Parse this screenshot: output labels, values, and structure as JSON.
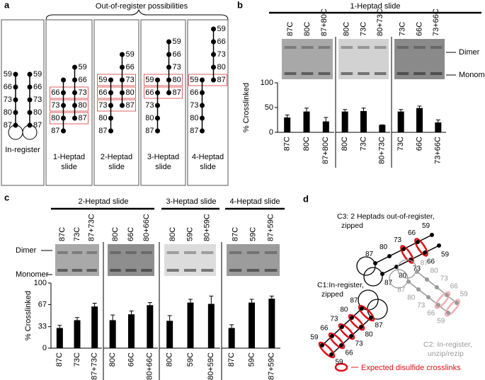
{
  "panel_labels": [
    "a",
    "b",
    "c",
    "d"
  ],
  "a": {
    "title": "Out-of-register possibilities",
    "boxes": [
      {
        "caption": [
          "In-register"
        ],
        "left": [
          "59",
          "66",
          "73",
          "80",
          "87"
        ],
        "right": [
          "59",
          "66",
          "73",
          "80",
          "87"
        ]
      },
      {
        "caption": [
          "1-Heptad",
          "slide"
        ],
        "left": [
          null,
          "66",
          "73",
          "80",
          "87"
        ],
        "right": [
          "59",
          "66",
          "73",
          "80",
          "87"
        ]
      },
      {
        "caption": [
          "2-Heptad",
          "slide"
        ],
        "left": [
          "59",
          "66",
          "73",
          "80",
          "87"
        ],
        "right": [
          "59",
          "66",
          "73",
          "80",
          "87"
        ]
      },
      {
        "caption": [
          "3-Heptad",
          "slide"
        ],
        "left": [
          "59",
          "66",
          "73",
          "80",
          "87"
        ],
        "right": [
          "59",
          "66",
          "73",
          "80",
          "87"
        ]
      },
      {
        "caption": [
          "4-Heptad",
          "slide"
        ],
        "left": [
          "59",
          "66",
          "73",
          "80",
          "87"
        ],
        "right": [
          "59",
          "66",
          "73",
          "80",
          "87"
        ]
      }
    ]
  },
  "b": {
    "title": "1-Heptad slide",
    "y_label": "% Crosslinked",
    "gel_labels": [
      "Dimer",
      "Monomer"
    ]
  },
  "c": {
    "titles": [
      "2-Heptad slide",
      "3-Heptad slide",
      "4-Heptad slide"
    ],
    "y_label": "% Crosslinked",
    "gel_labels": [
      "Dimer",
      "Monomer"
    ]
  },
  "chart_data": [
    {
      "type": "bar",
      "categories": [
        "87C",
        "80C",
        "87+80C"
      ],
      "values": [
        30,
        42,
        22
      ],
      "errors": [
        5,
        7,
        8
      ],
      "color": "#000000",
      "ylim": [
        0,
        100
      ],
      "yticks": [
        0,
        50,
        100
      ]
    },
    {
      "type": "bar",
      "categories": [
        "80C",
        "73C",
        "80+73C"
      ],
      "values": [
        42,
        43,
        15
      ],
      "errors": [
        4,
        6,
        0
      ],
      "color": "#000000",
      "ylim": [
        0,
        100
      ]
    },
    {
      "type": "bar",
      "categories": [
        "73C",
        "66C",
        "73+66C"
      ],
      "values": [
        42,
        49,
        20
      ],
      "errors": [
        4,
        4,
        5
      ],
      "color": "#000000",
      "ylim": [
        0,
        100
      ]
    },
    {
      "type": "bar",
      "categories": [
        "87C",
        "73C",
        "87+73C"
      ],
      "values": [
        31,
        43,
        64
      ],
      "errors": [
        4,
        4,
        5
      ],
      "color": "#000000",
      "ylim": [
        0,
        100
      ],
      "yticks": [
        0,
        33,
        67,
        100
      ]
    },
    {
      "type": "bar",
      "categories": [
        "80C",
        "66C",
        "80+66C"
      ],
      "values": [
        43,
        52,
        66
      ],
      "errors": [
        8,
        5,
        4
      ],
      "color": "#000000",
      "ylim": [
        0,
        100
      ]
    },
    {
      "type": "bar",
      "categories": [
        "80C",
        "59C",
        "80+59C"
      ],
      "values": [
        42,
        70,
        68
      ],
      "errors": [
        8,
        5,
        12
      ],
      "color": "#000000",
      "ylim": [
        0,
        100
      ]
    },
    {
      "type": "bar",
      "categories": [
        "87C",
        "59C",
        "87+59C"
      ],
      "values": [
        31,
        70,
        76
      ],
      "errors": [
        5,
        5,
        4
      ],
      "color": "#000000",
      "ylim": [
        0,
        100
      ]
    }
  ],
  "d": {
    "c3": {
      "caption": [
        "C3: 2 Heptads out-of-register,",
        "zipped"
      ],
      "upper": [
        "87",
        "80",
        "73",
        "66",
        "59"
      ],
      "lower": [
        "87",
        "80",
        "73",
        "66",
        "59"
      ]
    },
    "c1": {
      "caption": [
        "C1:In-register,",
        "zipped"
      ],
      "upper": [
        "59",
        "66",
        "73",
        "80",
        "87"
      ],
      "lower": [
        "59",
        "66",
        "73",
        "80",
        "87"
      ]
    },
    "c2": {
      "caption": [
        "C2: In-register,",
        "unzip/rezip"
      ],
      "upper": [
        "87",
        "80",
        "73",
        "66",
        "59"
      ],
      "lower": [
        "87",
        "80",
        "73",
        "66",
        "59"
      ]
    },
    "legend": "Expected disulfide crosslinks"
  }
}
